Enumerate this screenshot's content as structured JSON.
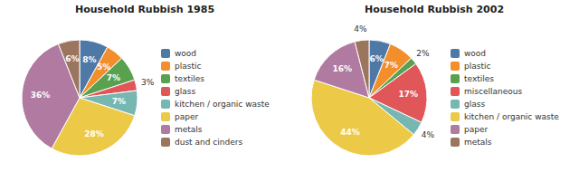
{
  "chart_data": [
    {
      "type": "pie",
      "title": "Household Rubbish 1985",
      "categories": [
        "wood",
        "plastic",
        "textiles",
        "glass",
        "kitchen / organic waste",
        "paper",
        "metals",
        "dust and cinders"
      ],
      "values": [
        8,
        5,
        7,
        3,
        7,
        28,
        36,
        6
      ],
      "value_labels": [
        "8%",
        "5%",
        "7%",
        "3%",
        "7%",
        "28%",
        "36%",
        "6%"
      ],
      "data_labels": true,
      "legend": "right"
    },
    {
      "type": "pie",
      "title": "Household Rubbish 2002",
      "categories": [
        "wood",
        "plastic",
        "textiles",
        "miscellaneous",
        "glass",
        "kitchen / organic waste",
        "paper",
        "metals"
      ],
      "values": [
        6,
        7,
        2,
        17,
        4,
        44,
        16,
        4
      ],
      "value_labels": [
        "6%",
        "7%",
        "2%",
        "17%",
        "4%",
        "44%",
        "16%",
        "4%"
      ],
      "data_labels": true,
      "legend": "right"
    }
  ]
}
